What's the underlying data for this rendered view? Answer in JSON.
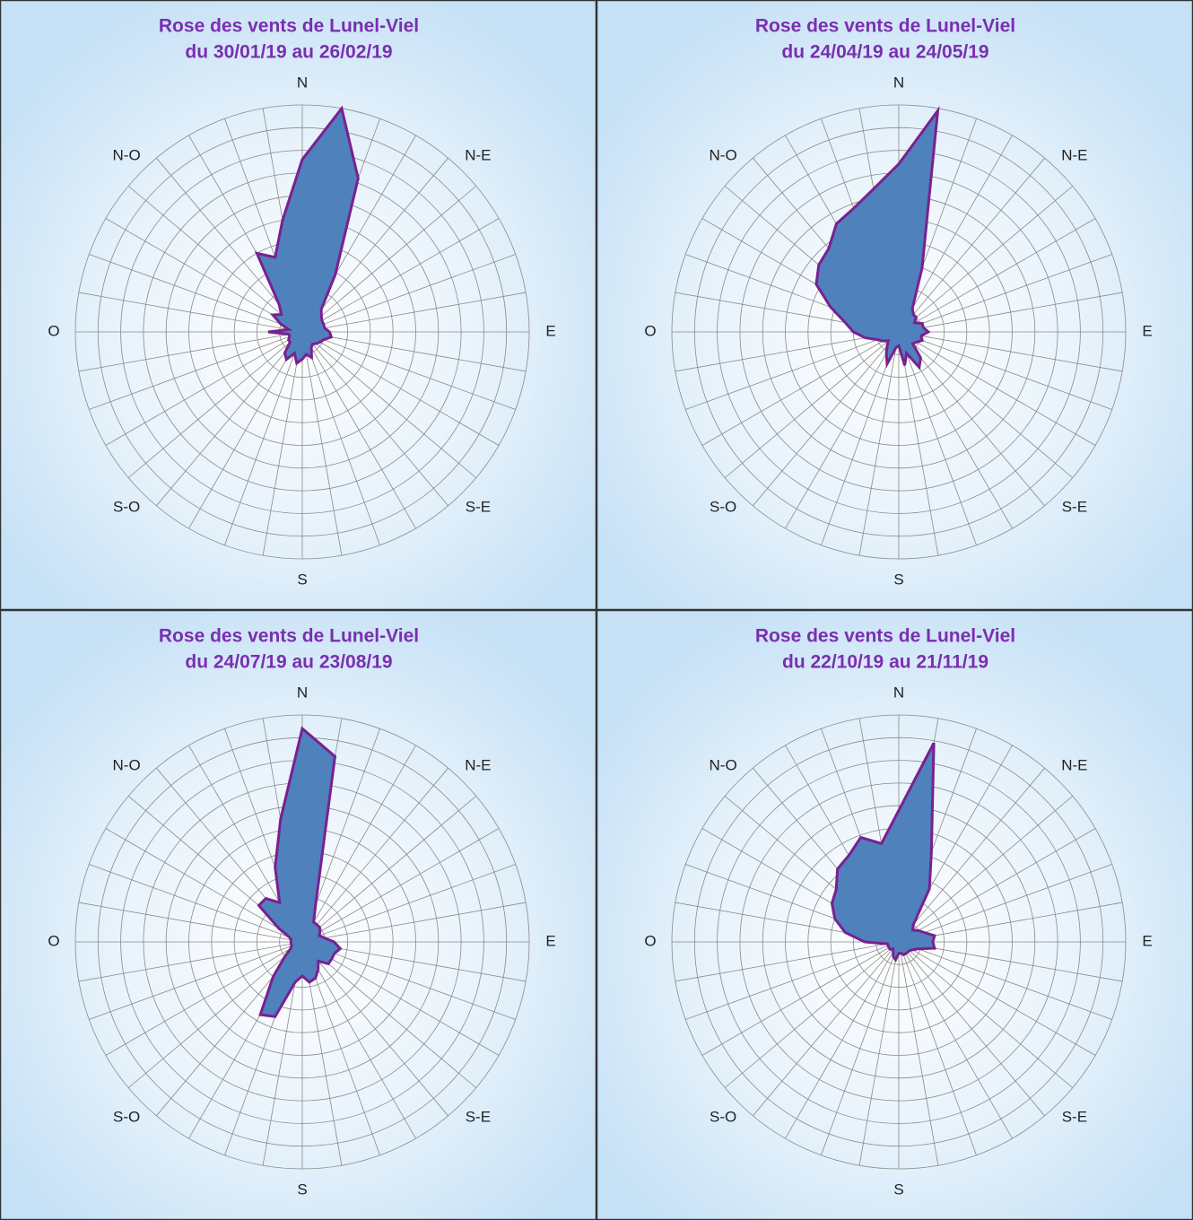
{
  "chart_data": [
    {
      "type": "radar",
      "title": "Rose des vents de Lunel-Viel",
      "subtitle": "du 30/01/19 au 26/02/19",
      "directions": [
        "N",
        "N-E",
        "E",
        "S-E",
        "S",
        "S-O",
        "O",
        "N-O"
      ],
      "values": [
        7.6,
        10,
        7.2,
        2.9,
        1.3,
        1.1,
        1.0,
        1.0,
        1.0,
        1.2,
        1.3,
        1.0,
        0.9,
        0.8,
        0.7,
        0.8,
        1.2,
        1.0,
        1.2,
        1.4,
        1.0,
        1.4,
        1.2,
        0.7,
        0.7,
        0.6,
        0.6,
        1.5,
        0.6,
        1.0,
        1.5,
        1.2,
        1.6,
        4.0,
        3.5,
        5.0
      ],
      "rlim": [
        0,
        10
      ],
      "rticks": [
        1,
        2,
        3,
        4,
        5,
        6,
        7,
        8,
        9,
        10
      ],
      "color": "#4f81bd",
      "line_color": "#7a2090"
    },
    {
      "type": "radar",
      "title": "Rose des vents de Lunel-Viel",
      "subtitle": "du 24/04/19 au 24/05/19",
      "directions": [
        "N",
        "N-E",
        "E",
        "S-E",
        "S",
        "S-O",
        "O",
        "N-O"
      ],
      "values": [
        7.4,
        9.9,
        3.0,
        1.2,
        1.0,
        1.0,
        0.8,
        1.1,
        1.1,
        1.3,
        1.0,
        1.1,
        0.9,
        0.8,
        1.5,
        1.8,
        1.0,
        1.5,
        0.6,
        0.7,
        1.5,
        1.1,
        0.8,
        0.6,
        0.8,
        1.0,
        1.5,
        2.0,
        2.4,
        3.2,
        4.2,
        4.6,
        4.8,
        5.5,
        5.8,
        6.4
      ],
      "rlim": [
        0,
        10
      ],
      "rticks": [
        1,
        2,
        3,
        4,
        5,
        6,
        7,
        8,
        9,
        10
      ],
      "color": "#4f81bd",
      "line_color": "#7a2090"
    },
    {
      "type": "radar",
      "title": "Rose des vents de Lunel-Viel",
      "subtitle": "du 24/07/19 au 23/08/19",
      "directions": [
        "N",
        "N-E",
        "E",
        "S-E",
        "S",
        "S-O",
        "O",
        "N-O"
      ],
      "values": [
        9.4,
        8.3,
        1.7,
        1.0,
        1.0,
        1.0,
        0.9,
        0.8,
        1.0,
        1.4,
        1.7,
        1.5,
        1.5,
        1.5,
        1.1,
        1.4,
        1.7,
        1.8,
        1.5,
        1.8,
        3.5,
        3.7,
        2.0,
        1.0,
        0.6,
        0.5,
        0.5,
        0.5,
        0.5,
        0.6,
        1.2,
        2.5,
        2.5,
        2.0,
        3.5,
        5.5
      ],
      "rlim": [
        0,
        10
      ],
      "rticks": [
        1,
        2,
        3,
        4,
        5,
        6,
        7,
        8,
        9,
        10
      ],
      "color": "#4f81bd",
      "line_color": "#7a2090"
    },
    {
      "type": "radar",
      "title": "Rose des vents de Lunel-Viel",
      "subtitle": "du 22/10/19 au 21/11/19",
      "directions": [
        "N",
        "N-E",
        "E",
        "S-E",
        "S",
        "S-O",
        "O",
        "N-O"
      ],
      "values": [
        5.8,
        8.9,
        4.2,
        2.7,
        1.0,
        0.8,
        1.0,
        1.2,
        1.6,
        1.5,
        1.6,
        0.9,
        0.7,
        0.6,
        0.6,
        0.6,
        0.6,
        0.5,
        0.5,
        0.8,
        0.7,
        0.5,
        0.4,
        0.5,
        0.5,
        0.5,
        0.5,
        1.5,
        2.4,
        3.0,
        3.4,
        3.6,
        4.2,
        4.4,
        4.9,
        4.4
      ],
      "rlim": [
        0,
        10
      ],
      "rticks": [
        1,
        2,
        3,
        4,
        5,
        6,
        7,
        8,
        9,
        10
      ],
      "color": "#4f81bd",
      "line_color": "#7a2090"
    }
  ]
}
